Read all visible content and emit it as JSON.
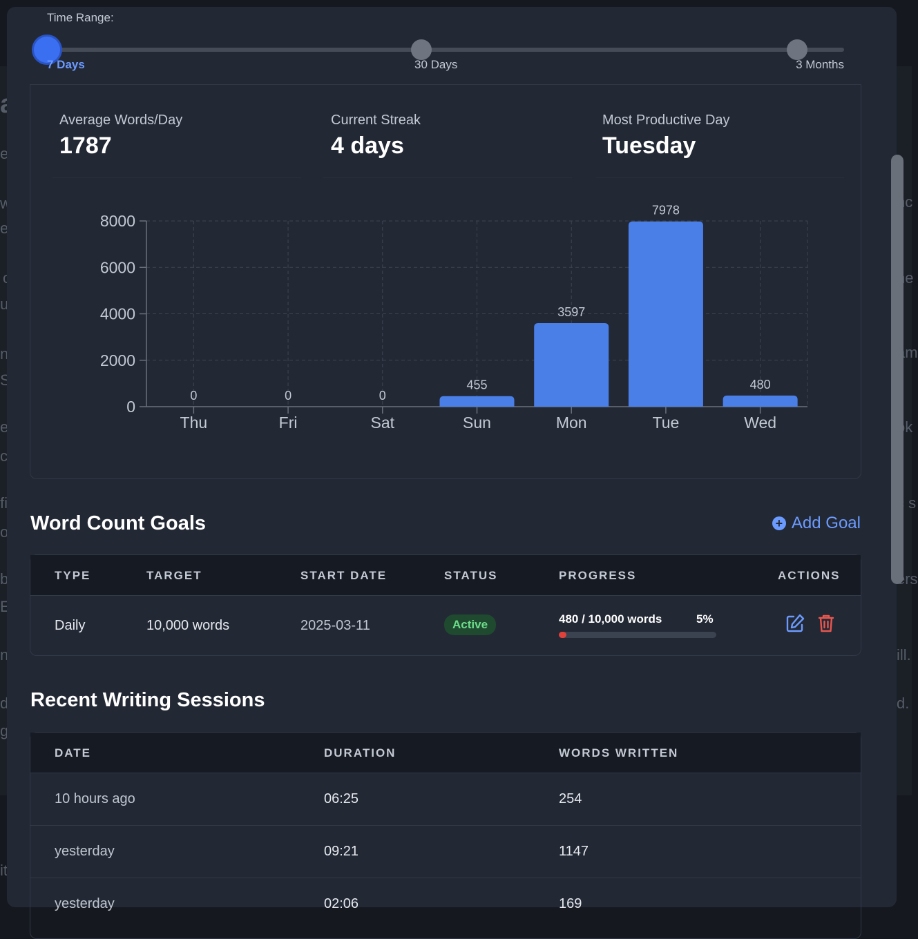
{
  "background": {
    "fragments": [
      "a",
      "e",
      "w",
      "e",
      "o",
      "u",
      "n",
      "S",
      "e",
      "c",
      "fi",
      "oc",
      "b",
      "E",
      "n",
      "d",
      "g",
      "it",
      "nc",
      "he",
      "am",
      "ok",
      "c s",
      "ers",
      "ill.",
      "d."
    ]
  },
  "time_range": {
    "label": "Time Range:",
    "options": [
      "7 Days",
      "30 Days",
      "3 Months"
    ],
    "selected_index": 0
  },
  "stats": {
    "avg": {
      "label": "Average Words/Day",
      "value": "1787"
    },
    "streak": {
      "label": "Current Streak",
      "value": "4 days"
    },
    "productive": {
      "label": "Most Productive Day",
      "value": "Tuesday"
    }
  },
  "chart_data": {
    "type": "bar",
    "categories": [
      "Thu",
      "Fri",
      "Sat",
      "Sun",
      "Mon",
      "Tue",
      "Wed"
    ],
    "values": [
      0,
      0,
      0,
      455,
      3597,
      7978,
      480
    ],
    "ylim": [
      0,
      8000
    ],
    "yticks": [
      0,
      2000,
      4000,
      6000,
      8000
    ],
    "grid": true,
    "title": "",
    "xlabel": "",
    "ylabel": "",
    "bar_color": "#4a7fe8"
  },
  "goals": {
    "title": "Word Count Goals",
    "add_label": "Add Goal",
    "headers": [
      "TYPE",
      "TARGET",
      "START DATE",
      "STATUS",
      "PROGRESS",
      "ACTIONS"
    ],
    "rows": [
      {
        "type": "Daily",
        "target": "10,000 words",
        "start": "2025-03-11",
        "status": "Active",
        "progress_text": "480 / 10,000 words",
        "percent": "5%",
        "fraction": 0.048
      }
    ]
  },
  "sessions": {
    "title": "Recent Writing Sessions",
    "headers": [
      "DATE",
      "DURATION",
      "WORDS WRITTEN"
    ],
    "rows": [
      {
        "date": "10 hours ago",
        "duration": "06:25",
        "words": "254"
      },
      {
        "date": "yesterday",
        "duration": "09:21",
        "words": "1147"
      },
      {
        "date": "yesterday",
        "duration": "02:06",
        "words": "169"
      }
    ]
  },
  "colors": {
    "accent": "#6c9bff",
    "danger": "#e0413a",
    "success": "#6fdc8c"
  }
}
